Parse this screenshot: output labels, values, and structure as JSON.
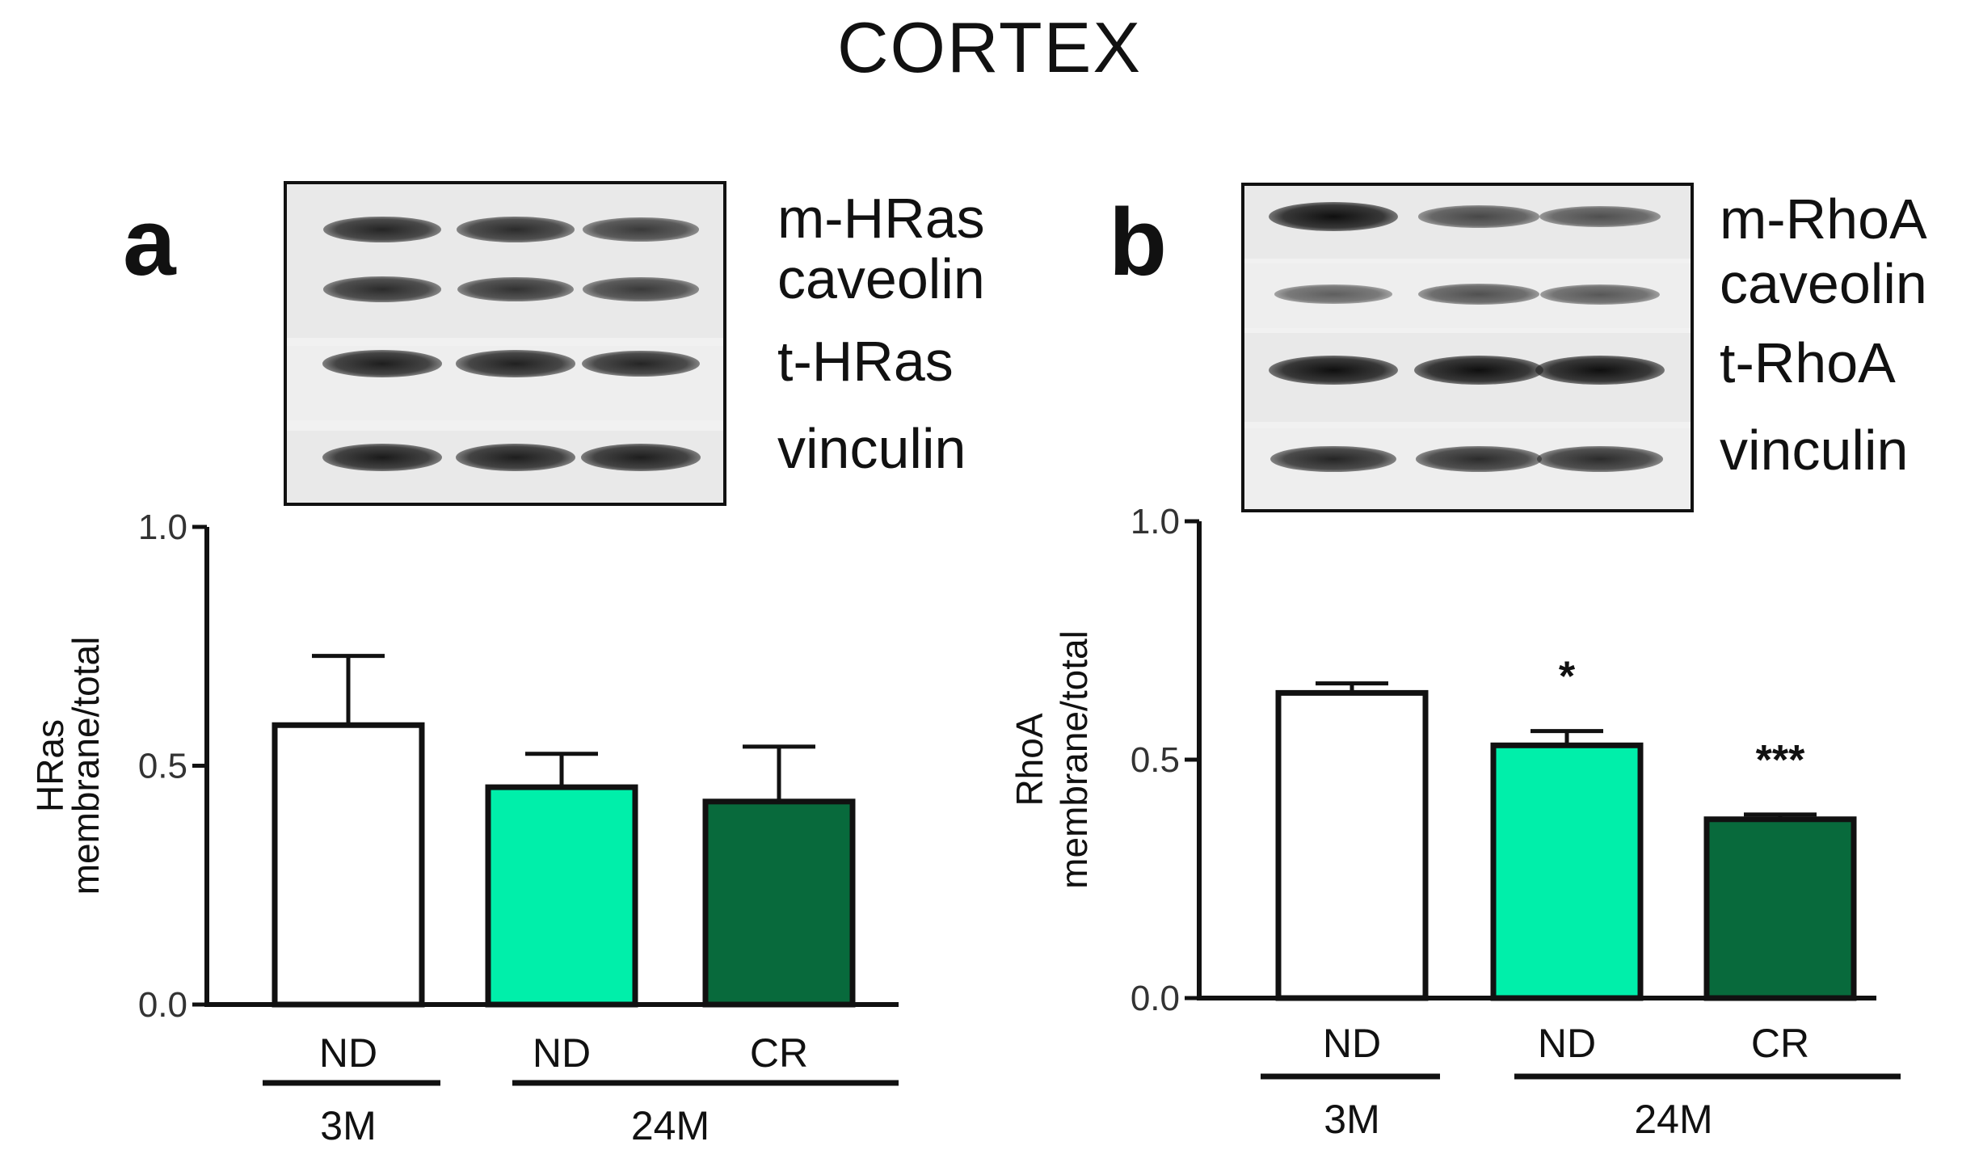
{
  "figure": {
    "title": "CORTEX"
  },
  "colors": {
    "nd_3m": "#ffffff",
    "nd_24m": "#00efaa",
    "cr_24m": "#086a3c",
    "stroke": "#111111"
  },
  "panels": [
    {
      "letter": "a",
      "blot_labels": [
        "m-HRas",
        "caveolin",
        "t-HRas",
        "vinculin"
      ],
      "blot_bands": [
        [
          0.85,
          0.8,
          0.7
        ],
        [
          0.8,
          0.75,
          0.7
        ],
        [
          0.9,
          0.88,
          0.85
        ],
        [
          0.92,
          0.9,
          0.9
        ]
      ]
    },
    {
      "letter": "b",
      "blot_labels": [
        "m-RhoA",
        "caveolin",
        "t-RhoA",
        "vinculin"
      ],
      "blot_bands": [
        [
          1.0,
          0.6,
          0.55
        ],
        [
          0.45,
          0.55,
          0.5
        ],
        [
          1.0,
          1.0,
          1.0
        ],
        [
          0.85,
          0.8,
          0.8
        ]
      ]
    }
  ],
  "chart_data": [
    {
      "type": "bar",
      "panel": "a",
      "title": "",
      "ylabel_lines": [
        "HRas",
        "membrane/total"
      ],
      "ylim": [
        0,
        1.0
      ],
      "yticks": [
        0.0,
        0.5,
        1.0
      ],
      "ytick_labels": [
        "0.0",
        "0.5",
        "1.0"
      ],
      "categories": [
        "ND",
        "ND",
        "CR"
      ],
      "groups": [
        {
          "label": "3M",
          "span": [
            0,
            0
          ]
        },
        {
          "label": "24M",
          "span": [
            1,
            2
          ]
        }
      ],
      "values": [
        0.585,
        0.455,
        0.425
      ],
      "errors": [
        0.145,
        0.07,
        0.115
      ],
      "significance": [
        "",
        "",
        ""
      ],
      "bar_colors": [
        "#ffffff",
        "#00efaa",
        "#086a3c"
      ]
    },
    {
      "type": "bar",
      "panel": "b",
      "title": "",
      "ylabel_lines": [
        "RhoA",
        "membrane/total"
      ],
      "ylim": [
        0,
        1.0
      ],
      "yticks": [
        0.0,
        0.5,
        1.0
      ],
      "ytick_labels": [
        "0.0",
        "0.5",
        "1.0"
      ],
      "categories": [
        "ND",
        "ND",
        "CR"
      ],
      "groups": [
        {
          "label": "3M",
          "span": [
            0,
            0
          ]
        },
        {
          "label": "24M",
          "span": [
            1,
            2
          ]
        }
      ],
      "values": [
        0.64,
        0.53,
        0.375
      ],
      "errors": [
        0.02,
        0.03,
        0.01
      ],
      "significance": [
        "",
        "*",
        "***"
      ],
      "bar_colors": [
        "#ffffff",
        "#00efaa",
        "#086a3c"
      ]
    }
  ]
}
